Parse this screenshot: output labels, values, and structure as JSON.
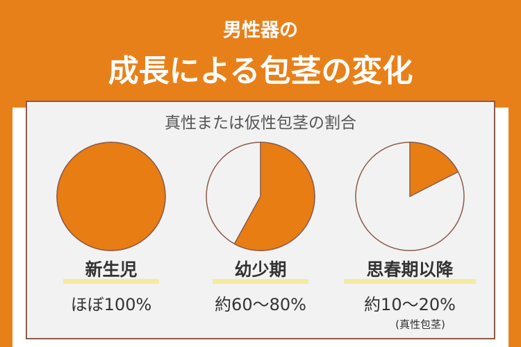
{
  "header": {
    "line1": "男性器の",
    "line2": "成長による包茎の変化"
  },
  "panel_title": "真性または仮性包茎の割合",
  "chart_data": [
    {
      "type": "pie",
      "title": "新生児",
      "values": [
        100
      ],
      "value_labels": [
        "ほぼ100%"
      ],
      "color": "#e87d14"
    },
    {
      "type": "pie",
      "title": "幼少期",
      "values": [
        58
      ],
      "value_labels": [
        "約60〜80%"
      ],
      "color": "#e87d14"
    },
    {
      "type": "pie",
      "title": "思春期以降",
      "values": [
        17.5
      ],
      "value_labels": [
        "約10〜20%"
      ],
      "note": "(真性包茎)",
      "color": "#e87d14"
    }
  ]
}
